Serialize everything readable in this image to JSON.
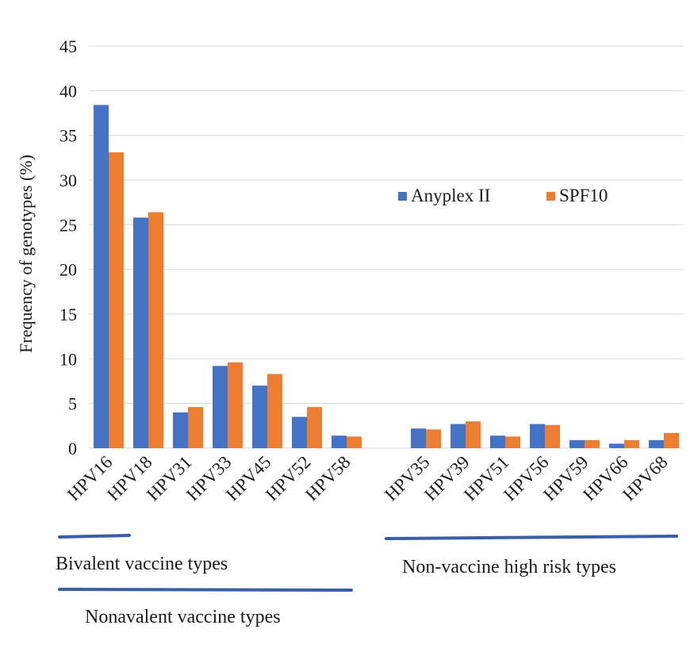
{
  "chart_data": {
    "type": "bar",
    "title": "",
    "xlabel": "",
    "ylabel": "Frequency of genotypes (%)",
    "ylim": [
      0,
      45
    ],
    "yticks": [
      "0",
      "5",
      "10",
      "15",
      "20",
      "25",
      "30",
      "35",
      "40",
      "45"
    ],
    "grid": true,
    "legend_position": "right-middle",
    "colors": {
      "Anyplex II": "#4472c4",
      "SPF10": "#ed7d31"
    },
    "categories": [
      "HPV16",
      "HPV18",
      "HPV31",
      "HPV33",
      "HPV45",
      "HPV52",
      "HPV58",
      "",
      "HPV35",
      "HPV39",
      "HPV51",
      "HPV56",
      "HPV59",
      "HPV66",
      "HPV68"
    ],
    "series": [
      {
        "name": "Anyplex II",
        "values": [
          38.4,
          25.8,
          4.0,
          9.2,
          7.0,
          3.5,
          1.4,
          null,
          2.2,
          2.7,
          1.4,
          2.7,
          0.9,
          0.5,
          0.9
        ]
      },
      {
        "name": "SPF10",
        "values": [
          33.1,
          26.4,
          4.6,
          9.6,
          8.3,
          4.6,
          1.3,
          null,
          2.1,
          3.0,
          1.3,
          2.6,
          0.9,
          0.9,
          1.7
        ]
      }
    ],
    "annotations": {
      "bivalent": "Bivalent vaccine types",
      "nonavalent": "Nonavalent vaccine types",
      "nonvaccine": "Non-vaccine high risk types"
    }
  }
}
